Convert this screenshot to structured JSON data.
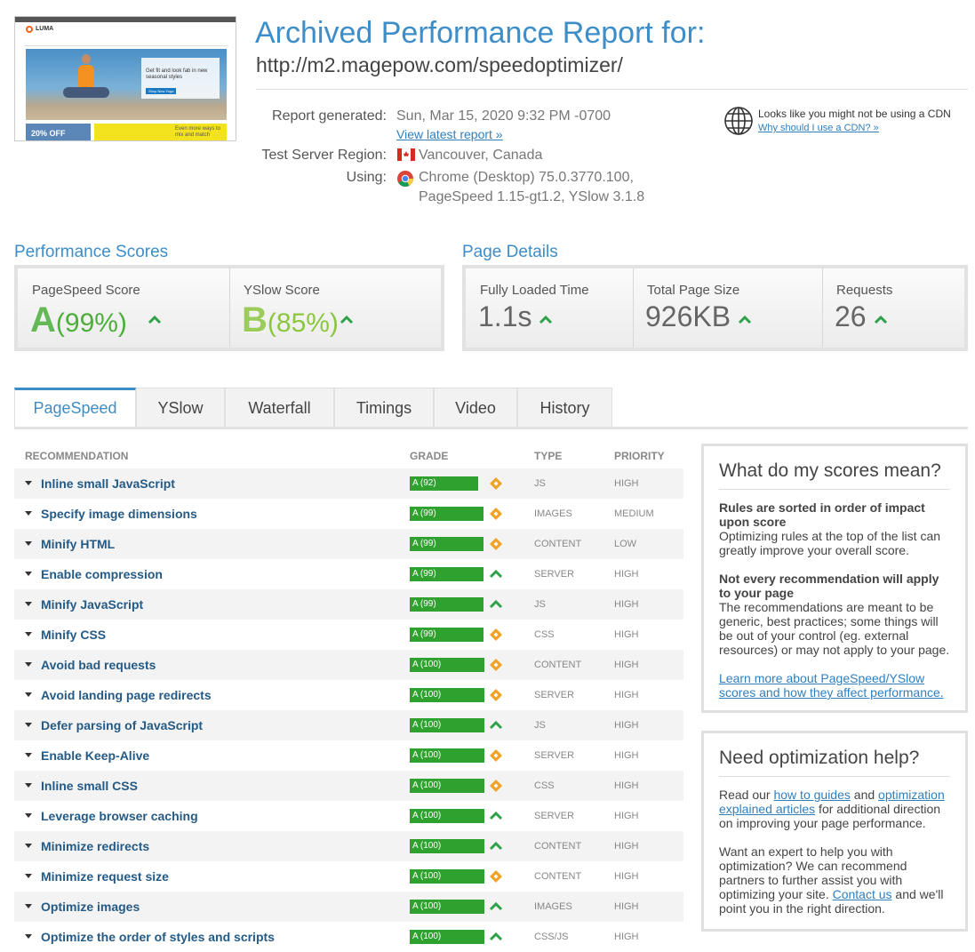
{
  "thumbnail": {
    "brand": "LUMA",
    "promo": "Get fit and look fab in new seasonal styles",
    "button": "Shop New Yoga",
    "sale": "20% OFF",
    "banner": "Even more ways to mix and match"
  },
  "header": {
    "title": "Archived Performance Report for:",
    "url": "http://m2.magepow.com/speedoptimizer/"
  },
  "report_info": {
    "generated_label": "Report generated:",
    "generated_value": "Sun, Mar 15, 2020 9:32 PM -0700",
    "latest_link": "View latest report »",
    "region_label": "Test Server Region:",
    "region_value": "Vancouver, Canada",
    "using_label": "Using:",
    "using_line1": "Chrome (Desktop) 75.0.3770.100,",
    "using_line2": "PageSpeed 1.15-gt1.2, YSlow 3.1.8"
  },
  "cdn": {
    "text": "Looks like you might not be using a CDN",
    "link": "Why should I use a CDN? »"
  },
  "performance_scores": {
    "title": "Performance Scores",
    "items": [
      {
        "label": "PageSpeed Score",
        "grade": "A",
        "score": "(99%)",
        "color": "#4caf3a"
      },
      {
        "label": "YSlow Score",
        "grade": "B",
        "score": "(85%)",
        "color": "#8cc63f"
      }
    ]
  },
  "page_details": {
    "title": "Page Details",
    "items": [
      {
        "label": "Fully Loaded Time",
        "value": "1.1s"
      },
      {
        "label": "Total Page Size",
        "value": "926KB"
      },
      {
        "label": "Requests",
        "value": 26
      }
    ]
  },
  "tabs": [
    "PageSpeed",
    "YSlow",
    "Waterfall",
    "Timings",
    "Video",
    "History"
  ],
  "table": {
    "columns": [
      "RECOMMENDATION",
      "GRADE",
      "TYPE",
      "PRIORITY"
    ],
    "rows": [
      {
        "name": "Inline small JavaScript",
        "grade": "A (92)",
        "score": 92,
        "type": "JS",
        "priority": "HIGH",
        "icon": "diamond"
      },
      {
        "name": "Specify image dimensions",
        "grade": "A (99)",
        "score": 99,
        "type": "IMAGES",
        "priority": "MEDIUM",
        "icon": "diamond"
      },
      {
        "name": "Minify HTML",
        "grade": "A (99)",
        "score": 99,
        "type": "CONTENT",
        "priority": "LOW",
        "icon": "diamond"
      },
      {
        "name": "Enable compression",
        "grade": "A (99)",
        "score": 99,
        "type": "SERVER",
        "priority": "HIGH",
        "icon": "arrow-up"
      },
      {
        "name": "Minify JavaScript",
        "grade": "A (99)",
        "score": 99,
        "type": "JS",
        "priority": "HIGH",
        "icon": "arrow-up"
      },
      {
        "name": "Minify CSS",
        "grade": "A (99)",
        "score": 99,
        "type": "CSS",
        "priority": "HIGH",
        "icon": "diamond"
      },
      {
        "name": "Avoid bad requests",
        "grade": "A (100)",
        "score": 100,
        "type": "CONTENT",
        "priority": "HIGH",
        "icon": "diamond"
      },
      {
        "name": "Avoid landing page redirects",
        "grade": "A (100)",
        "score": 100,
        "type": "SERVER",
        "priority": "HIGH",
        "icon": "diamond"
      },
      {
        "name": "Defer parsing of JavaScript",
        "grade": "A (100)",
        "score": 100,
        "type": "JS",
        "priority": "HIGH",
        "icon": "arrow-up"
      },
      {
        "name": "Enable Keep-Alive",
        "grade": "A (100)",
        "score": 100,
        "type": "SERVER",
        "priority": "HIGH",
        "icon": "diamond"
      },
      {
        "name": "Inline small CSS",
        "grade": "A (100)",
        "score": 100,
        "type": "CSS",
        "priority": "HIGH",
        "icon": "diamond"
      },
      {
        "name": "Leverage browser caching",
        "grade": "A (100)",
        "score": 100,
        "type": "SERVER",
        "priority": "HIGH",
        "icon": "arrow-up"
      },
      {
        "name": "Minimize redirects",
        "grade": "A (100)",
        "score": 100,
        "type": "CONTENT",
        "priority": "HIGH",
        "icon": "arrow-up"
      },
      {
        "name": "Minimize request size",
        "grade": "A (100)",
        "score": 100,
        "type": "CONTENT",
        "priority": "HIGH",
        "icon": "diamond"
      },
      {
        "name": "Optimize images",
        "grade": "A (100)",
        "score": 100,
        "type": "IMAGES",
        "priority": "HIGH",
        "icon": "arrow-up"
      },
      {
        "name": "Optimize the order of styles and scripts",
        "grade": "A (100)",
        "score": 100,
        "type": "CSS/JS",
        "priority": "HIGH",
        "icon": "arrow-up"
      }
    ]
  },
  "scores_box": {
    "title": "What do my scores mean?",
    "sections": [
      {
        "heading": "Rules are sorted in order of impact upon score",
        "text": "Optimizing rules at the top of the list can greatly improve your overall score."
      },
      {
        "heading": "Not every recommendation will apply to your page",
        "text": "The recommendations are meant to be generic, best practices; some things will be out of your control (eg. external resources) or may not apply to your page."
      }
    ],
    "link": "Learn more about PageSpeed/YSlow scores and how they affect performance."
  },
  "help_box": {
    "title": "Need optimization help?",
    "paragraphs": [
      [
        {
          "text": "Read our "
        },
        {
          "text": "how to guides",
          "link": true
        },
        {
          "text": " and "
        },
        {
          "text": "optimization explained articles",
          "link": true
        },
        {
          "text": " for additional direction on improving your page performance."
        }
      ],
      [
        {
          "text": "Want an expert to help you with optimization? We can recommend partners to further assist you with optimizing your site. "
        },
        {
          "text": "Contact us",
          "link": true
        },
        {
          "text": " and we'll point you in the right direction."
        }
      ]
    ]
  }
}
